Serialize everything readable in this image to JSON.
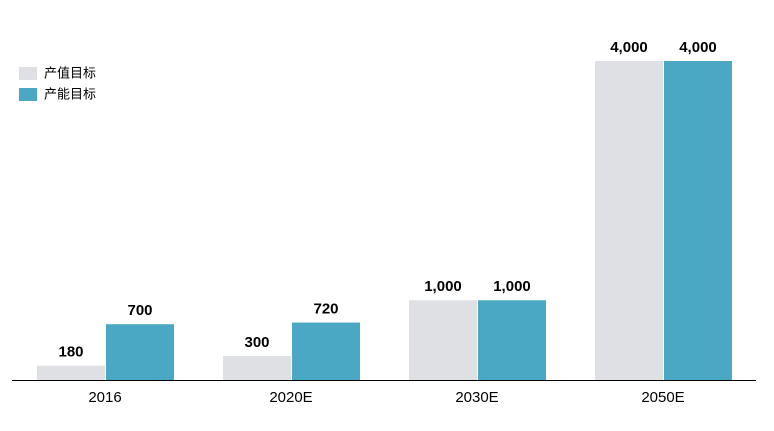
{
  "chart_data": {
    "type": "bar",
    "categories": [
      "2016",
      "2020E",
      "2030E",
      "2050E"
    ],
    "series": [
      {
        "name": "产值目标",
        "color": "#dfe0e3",
        "values": [
          180,
          300,
          1000,
          4000
        ],
        "value_labels": [
          "180",
          "300",
          "1,000",
          "4,000"
        ]
      },
      {
        "name": "产能目标",
        "color": "#4aa8c4",
        "values": [
          700,
          720,
          1000,
          4000
        ],
        "value_labels": [
          "700",
          "720",
          "1,000",
          "4,000"
        ]
      }
    ],
    "ylim": [
      0,
      4000
    ],
    "legend": "upper-left"
  }
}
